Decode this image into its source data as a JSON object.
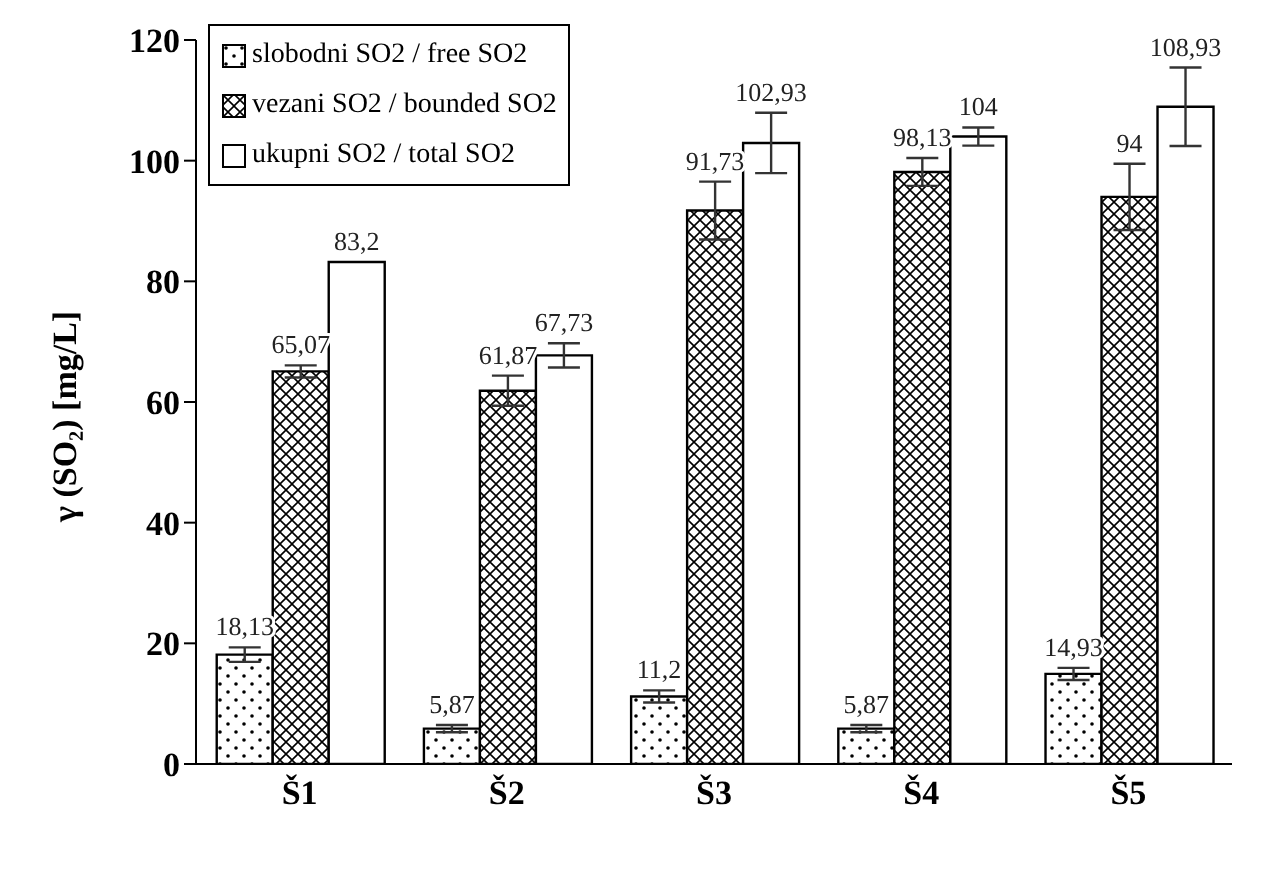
{
  "chart_data": {
    "type": "bar",
    "ylabel": "γ (SO₂) [mg/L]",
    "categories": [
      "Š1",
      "Š2",
      "Š3",
      "Š4",
      "Š5"
    ],
    "ylim": [
      0,
      120
    ],
    "yticks": [
      0,
      20,
      40,
      60,
      80,
      100,
      120
    ],
    "grid": false,
    "legend": "top left",
    "series": [
      {
        "name": "slobodni SO2 / free  SO2",
        "color": "#000000",
        "values": [
          18.13,
          5.87,
          11.2,
          5.87,
          14.93
        ],
        "errors": [
          1.2,
          0.6,
          1,
          0.6,
          1
        ],
        "value_labels": [
          "18,13",
          "5,87",
          "11,2",
          "5,87",
          "14,93"
        ]
      },
      {
        "name": "vezani  SO2 / bounded  SO2",
        "color": "#000000",
        "values": [
          65.07,
          61.87,
          91.73,
          98.13,
          94
        ],
        "errors": [
          1,
          2.5,
          4.8,
          2.3,
          5.5
        ],
        "value_labels": [
          "65,07",
          "61,87",
          "91,73",
          "98,13",
          "94"
        ]
      },
      {
        "name": "ukupni  SO2 / total SO2",
        "color": "#ffffff",
        "values": [
          83.2,
          67.73,
          102.93,
          104,
          108.93
        ],
        "errors": [
          null,
          2,
          5,
          1.5,
          6.5
        ],
        "value_labels": [
          "83,2",
          "67,73",
          "102,93",
          "104",
          "108,93"
        ]
      }
    ]
  }
}
